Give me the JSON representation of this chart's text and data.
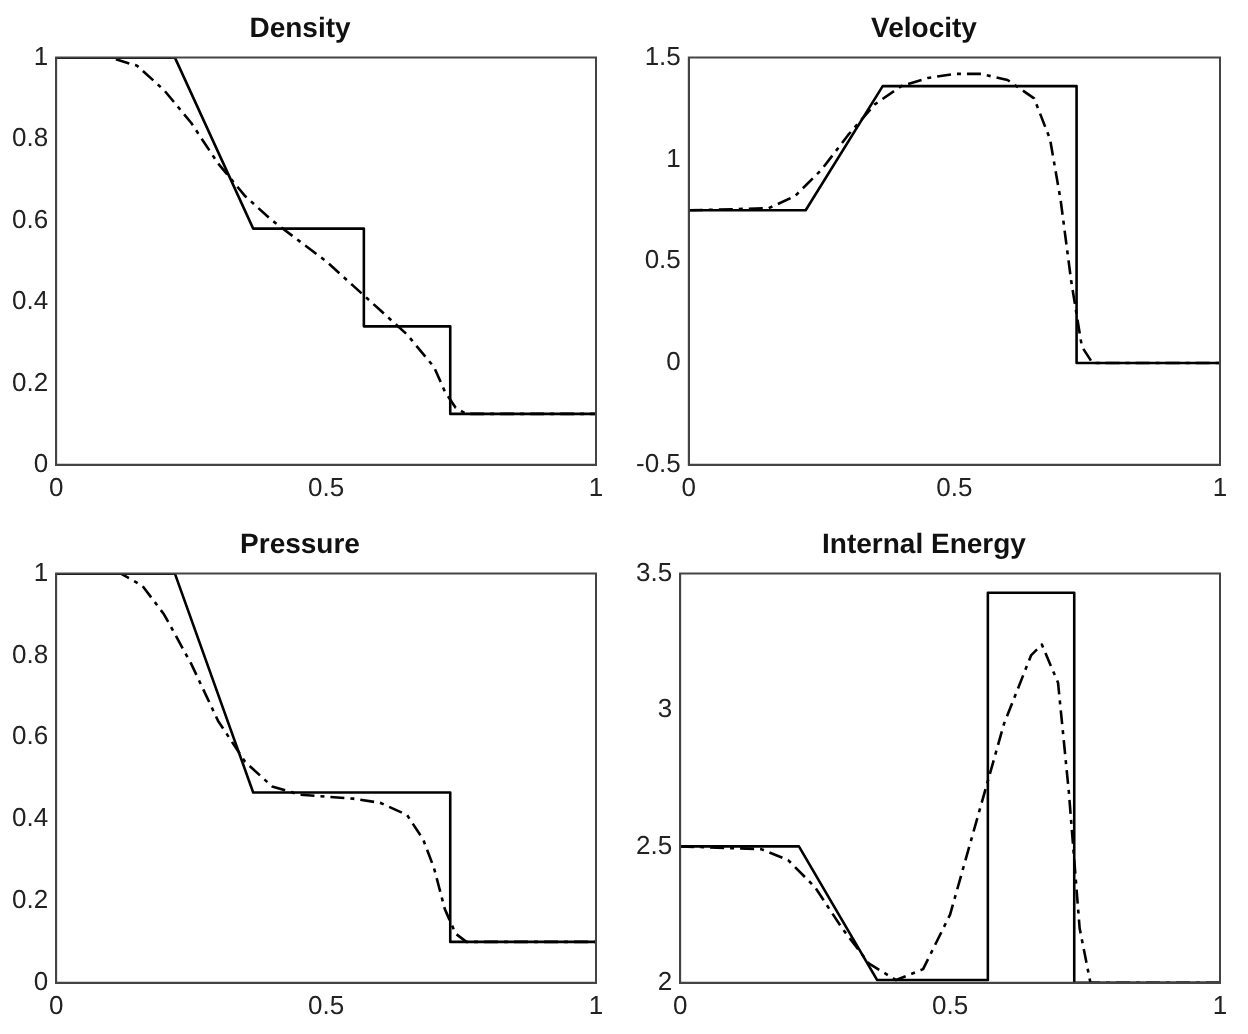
{
  "chart_data": [
    {
      "type": "line",
      "title": "Density",
      "xlim": [
        0,
        1
      ],
      "xticks": [
        0,
        0.5,
        1
      ],
      "ylim": [
        0,
        1
      ],
      "yticks": [
        0,
        0.2,
        0.4,
        0.6,
        0.8,
        1
      ],
      "grid": false,
      "legend": false,
      "marker": "none",
      "series": [
        {
          "color": "#000000",
          "line_style": "solid",
          "x": [
            0,
            0.22,
            0.365,
            0.57,
            0.57,
            0.73,
            0.73,
            1
          ],
          "values": [
            1,
            1,
            0.58,
            0.58,
            0.34,
            0.34,
            0.125,
            0.125
          ]
        },
        {
          "color": "#000000",
          "line_style": "dashed",
          "x": [
            0,
            0.1,
            0.15,
            0.2,
            0.25,
            0.3,
            0.35,
            0.4,
            0.45,
            0.5,
            0.55,
            0.6,
            0.65,
            0.7,
            0.72,
            0.74,
            0.76,
            1
          ],
          "values": [
            1,
            1,
            0.98,
            0.92,
            0.84,
            0.74,
            0.66,
            0.6,
            0.55,
            0.5,
            0.44,
            0.38,
            0.32,
            0.24,
            0.18,
            0.14,
            0.125,
            0.125
          ]
        }
      ]
    },
    {
      "type": "line",
      "title": "Velocity",
      "xlim": [
        0,
        1
      ],
      "xticks": [
        0,
        0.5,
        1
      ],
      "ylim": [
        -0.5,
        1.5
      ],
      "yticks": [
        -0.5,
        0,
        0.5,
        1,
        1.5
      ],
      "grid": false,
      "legend": false,
      "marker": "none",
      "series": [
        {
          "color": "#000000",
          "line_style": "solid",
          "x": [
            0,
            0.22,
            0.365,
            0.73,
            0.73,
            1
          ],
          "values": [
            0.75,
            0.75,
            1.36,
            1.36,
            0,
            0
          ]
        },
        {
          "color": "#000000",
          "line_style": "dashed",
          "x": [
            0,
            0.15,
            0.2,
            0.25,
            0.3,
            0.35,
            0.4,
            0.45,
            0.5,
            0.55,
            0.6,
            0.65,
            0.68,
            0.7,
            0.72,
            0.74,
            0.76,
            1
          ],
          "values": [
            0.75,
            0.76,
            0.82,
            0.95,
            1.12,
            1.27,
            1.36,
            1.4,
            1.42,
            1.42,
            1.39,
            1.3,
            1.1,
            0.8,
            0.4,
            0.08,
            0,
            0
          ]
        }
      ]
    },
    {
      "type": "line",
      "title": "Pressure",
      "xlim": [
        0,
        1
      ],
      "xticks": [
        0,
        0.5,
        1
      ],
      "ylim": [
        0,
        1
      ],
      "yticks": [
        0,
        0.2,
        0.4,
        0.6,
        0.8,
        1
      ],
      "grid": false,
      "legend": false,
      "marker": "none",
      "series": [
        {
          "color": "#000000",
          "line_style": "solid",
          "x": [
            0,
            0.22,
            0.365,
            0.73,
            0.73,
            1
          ],
          "values": [
            1,
            1,
            0.465,
            0.465,
            0.1,
            0.1
          ]
        },
        {
          "color": "#000000",
          "line_style": "dashed",
          "x": [
            0,
            0.12,
            0.16,
            0.2,
            0.25,
            0.3,
            0.35,
            0.4,
            0.45,
            0.5,
            0.55,
            0.6,
            0.65,
            0.68,
            0.7,
            0.72,
            0.74,
            0.76,
            1
          ],
          "values": [
            1,
            1,
            0.97,
            0.9,
            0.78,
            0.64,
            0.54,
            0.48,
            0.46,
            0.455,
            0.45,
            0.44,
            0.41,
            0.35,
            0.28,
            0.18,
            0.12,
            0.1,
            0.1
          ]
        }
      ]
    },
    {
      "type": "line",
      "title": "Internal Energy",
      "xlim": [
        0,
        1
      ],
      "xticks": [
        0,
        0.5,
        1
      ],
      "ylim": [
        2,
        3.5
      ],
      "yticks": [
        2,
        2.5,
        3,
        3.5
      ],
      "grid": false,
      "legend": false,
      "marker": "none",
      "series": [
        {
          "color": "#000000",
          "line_style": "solid",
          "x": [
            0,
            0.22,
            0.365,
            0.57,
            0.57,
            0.73,
            0.73,
            1
          ],
          "values": [
            2.5,
            2.5,
            2.01,
            2.01,
            3.43,
            3.43,
            2,
            2
          ]
        },
        {
          "color": "#000000",
          "line_style": "dashed",
          "x": [
            0,
            0.15,
            0.2,
            0.25,
            0.3,
            0.35,
            0.4,
            0.45,
            0.5,
            0.55,
            0.6,
            0.65,
            0.67,
            0.7,
            0.72,
            0.74,
            0.76,
            1
          ],
          "values": [
            2.5,
            2.49,
            2.45,
            2.35,
            2.2,
            2.07,
            2.01,
            2.05,
            2.25,
            2.6,
            2.95,
            3.2,
            3.24,
            3.1,
            2.7,
            2.2,
            2,
            2
          ]
        }
      ]
    }
  ]
}
